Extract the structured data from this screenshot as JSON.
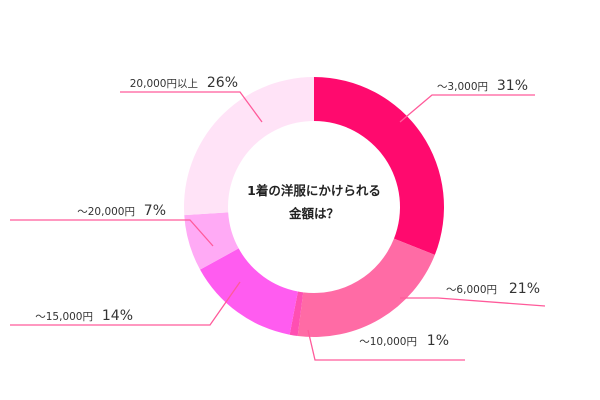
{
  "colors": {
    "leader_line": "#ff5a9a",
    "background": "#ffffff"
  },
  "chart_data": {
    "type": "pie",
    "style": "donut",
    "title_lines": [
      "1着の洋服にかけられる",
      "金額は？"
    ],
    "start_angle_deg": 0,
    "direction": "clockwise",
    "slices": [
      {
        "label": "～3,000円",
        "value": 31,
        "value_label": "31%",
        "color": "#ff0a6e"
      },
      {
        "label": "～6,000円",
        "value": 21,
        "value_label": "21%",
        "color": "#ff6ba5"
      },
      {
        "label": "～10,000円",
        "value": 1,
        "value_label": "1%",
        "color": "#ff4fb2"
      },
      {
        "label": "～15,000円",
        "value": 14,
        "value_label": "14%",
        "color": "#ff5cf0"
      },
      {
        "label": "～20,000円",
        "value": 7,
        "value_label": "7%",
        "color": "#ffaaf5"
      },
      {
        "label": "20,000円以上",
        "value": 26,
        "value_label": "26%",
        "color": "#ffe3f7"
      }
    ]
  }
}
